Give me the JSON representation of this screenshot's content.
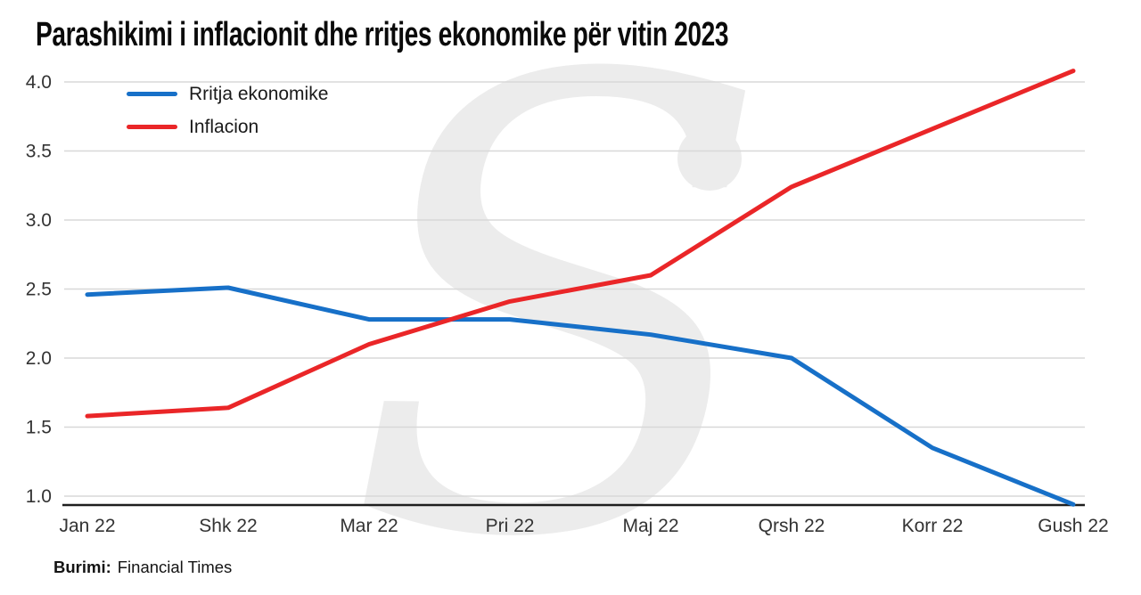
{
  "source": {
    "label": "Burimi:",
    "text": "Financial Times"
  },
  "watermark": {
    "letter": "S"
  },
  "chart_data": {
    "type": "line",
    "title": "Parashikimi i inflacionit dhe rritjes ekonomike për vitin 2023",
    "categories": [
      "Jan 22",
      "Shk 22",
      "Mar 22",
      "Pri 22",
      "Maj 22",
      "Qrsh 22",
      "Korr 22",
      "Gush 22"
    ],
    "series": [
      {
        "name": "Rritja ekonomike",
        "color": "#1770c8",
        "values": [
          2.46,
          2.51,
          2.28,
          2.28,
          2.17,
          2.0,
          1.35,
          0.94
        ]
      },
      {
        "name": "Inflacion",
        "color": "#ea2628",
        "values": [
          1.58,
          1.64,
          2.1,
          2.41,
          2.6,
          3.24,
          3.66,
          4.08
        ]
      }
    ],
    "yticks": [
      1.0,
      1.5,
      2.0,
      2.5,
      3.0,
      3.5,
      4.0
    ],
    "ylim": [
      0.93,
      4.09
    ],
    "xlabel": "",
    "ylabel": "",
    "grid": true,
    "legend_position": "top-left",
    "grid_color": "#d8d8d8",
    "axis_color": "#1e1e1e",
    "tick_text_color": "#333333"
  }
}
